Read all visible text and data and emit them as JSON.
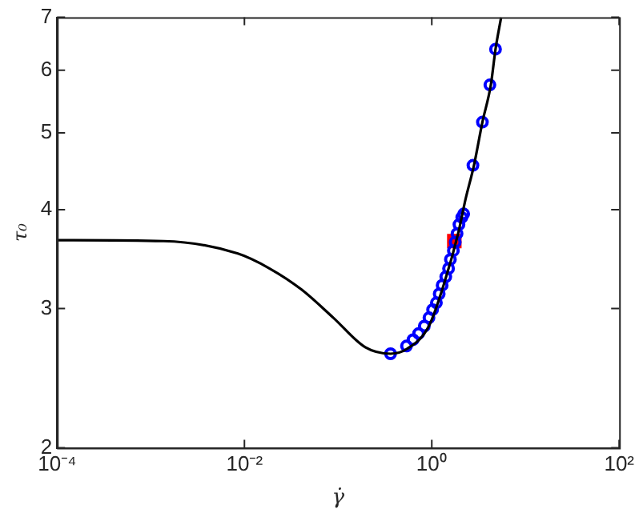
{
  "chart_data": {
    "type": "line",
    "xlabel": "γ̇",
    "ylabel": "τ₀",
    "log": "xy",
    "grid": false,
    "legend": false,
    "xlim": [
      0.0001,
      100
    ],
    "ylim": [
      2,
      7
    ],
    "xticks": [
      {
        "value": 0.0001,
        "label": "10⁻⁴"
      },
      {
        "value": 0.01,
        "label": "10⁻²"
      },
      {
        "value": 1,
        "label": "10⁰"
      },
      {
        "value": 100,
        "label": "10²"
      }
    ],
    "yticks": [
      2,
      3,
      4,
      5,
      6,
      7
    ],
    "series": [
      {
        "color": "#000000",
        "marker": "none",
        "x": [
          0.0001,
          0.00138,
          0.0085,
          0.0186,
          0.0407,
          0.089,
          0.195,
          0.363,
          0.55,
          0.93,
          1.38,
          1.91,
          2.29,
          2.82,
          3.47,
          4.27,
          4.79,
          5.5
        ],
        "values": [
          3.66,
          3.65,
          3.52,
          3.37,
          3.17,
          2.92,
          2.68,
          2.63,
          2.67,
          2.85,
          3.25,
          3.73,
          4.12,
          4.55,
          5.16,
          5.75,
          6.38,
          7
        ]
      },
      {
        "type": "scatter",
        "color": "#0000ff",
        "marker": "circle",
        "x": [
          0.363,
          0.537,
          0.631,
          0.724,
          0.832,
          0.933,
          1.02,
          1.12,
          1.2,
          1.29,
          1.41,
          1.51,
          1.58,
          1.7,
          1.78,
          1.86,
          1.95,
          2.09,
          2.19,
          2.75,
          3.47,
          4.17,
          4.79
        ],
        "values": [
          2.63,
          2.69,
          2.74,
          2.79,
          2.85,
          2.92,
          2.99,
          3.05,
          3.13,
          3.21,
          3.29,
          3.37,
          3.46,
          3.55,
          3.64,
          3.73,
          3.83,
          3.91,
          3.95,
          4.55,
          5.16,
          5.75,
          6.38
        ]
      },
      {
        "type": "scatter",
        "color": "#ff0000",
        "marker": "square",
        "x": [
          1.74
        ],
        "values": [
          3.65
        ]
      }
    ]
  }
}
